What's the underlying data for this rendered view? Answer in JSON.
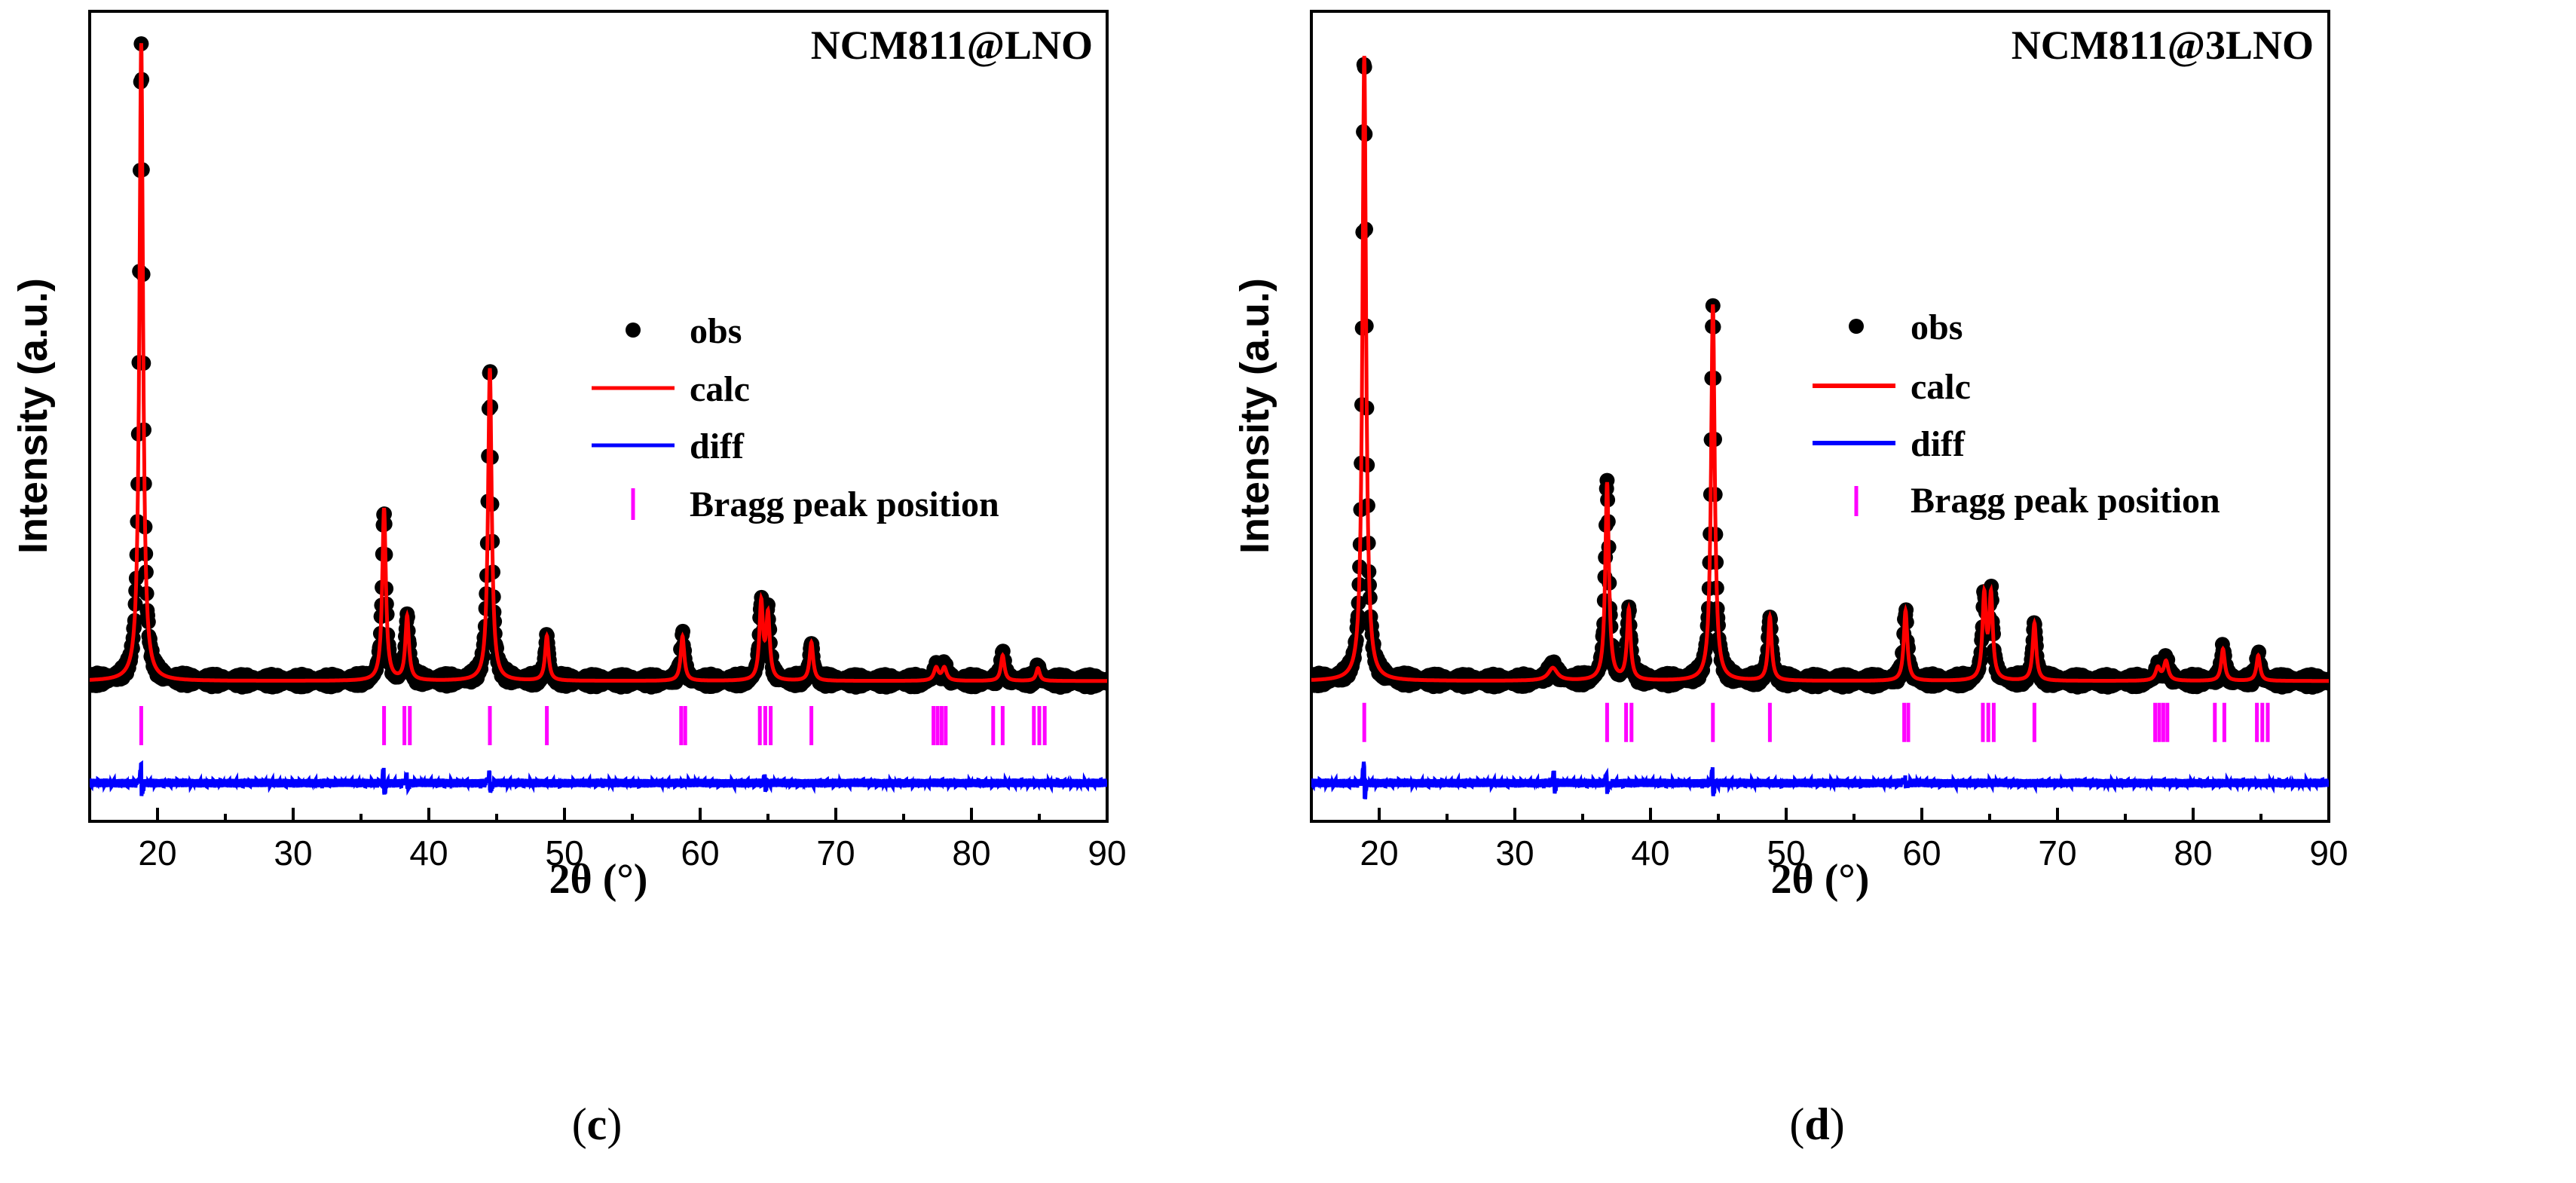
{
  "colors": {
    "obs": "#000000",
    "calc": "#ff0000",
    "diff": "#0000ff",
    "bragg": "#ff00ff",
    "axis": "#000000"
  },
  "chart_data": [
    {
      "type": "line",
      "panel_label": "c",
      "title": "NCM811@LNO",
      "xlabel": "2θ (°)",
      "ylabel": "Intensity (a.u.)",
      "xlim": [
        15,
        90
      ],
      "ylim": [
        -0.22,
        1.05
      ],
      "xticks": [
        20,
        30,
        40,
        50,
        60,
        70,
        80,
        90
      ],
      "yticks": [],
      "legend": {
        "position": "center-right",
        "entries": [
          "obs",
          "calc",
          "diff",
          "Bragg peak position"
        ]
      },
      "background": 0.0,
      "diff_offset": -0.16,
      "bragg_row": -0.07,
      "peaks": [
        {
          "x": 18.8,
          "intensity": 1.0,
          "width": 0.16
        },
        {
          "x": 36.7,
          "intensity": 0.27,
          "width": 0.16
        },
        {
          "x": 38.4,
          "intensity": 0.1,
          "width": 0.16
        },
        {
          "x": 44.5,
          "intensity": 0.49,
          "width": 0.16
        },
        {
          "x": 48.7,
          "intensity": 0.07,
          "width": 0.16
        },
        {
          "x": 58.7,
          "intensity": 0.07,
          "width": 0.16
        },
        {
          "x": 64.5,
          "intensity": 0.12,
          "width": 0.16
        },
        {
          "x": 65.0,
          "intensity": 0.1,
          "width": 0.16
        },
        {
          "x": 68.2,
          "intensity": 0.06,
          "width": 0.16
        },
        {
          "x": 77.4,
          "intensity": 0.02,
          "width": 0.2
        },
        {
          "x": 78.0,
          "intensity": 0.02,
          "width": 0.2
        },
        {
          "x": 82.3,
          "intensity": 0.04,
          "width": 0.16
        },
        {
          "x": 84.9,
          "intensity": 0.02,
          "width": 0.16
        }
      ],
      "bragg_positions": [
        18.8,
        36.7,
        38.2,
        38.6,
        44.5,
        48.7,
        58.6,
        58.9,
        64.4,
        64.8,
        65.2,
        68.2,
        77.2,
        77.5,
        77.8,
        78.1,
        81.6,
        82.3,
        84.6,
        85.0,
        85.4
      ],
      "diff_spikes": [
        {
          "x": 18.8,
          "amp": 0.025
        },
        {
          "x": 36.7,
          "amp": 0.018
        },
        {
          "x": 38.4,
          "amp": 0.01
        },
        {
          "x": 44.5,
          "amp": 0.02
        },
        {
          "x": 64.8,
          "amp": 0.01
        }
      ]
    },
    {
      "type": "line",
      "panel_label": "d",
      "title": "NCM811@3LNO",
      "xlabel": "2θ (°)",
      "ylabel": "Intensity (a.u.)",
      "xlim": [
        15,
        90
      ],
      "ylim": [
        -0.22,
        1.05
      ],
      "xticks": [
        20,
        30,
        40,
        50,
        60,
        70,
        80,
        90
      ],
      "yticks": [],
      "legend": {
        "position": "center-right",
        "entries": [
          "obs",
          "calc",
          "diff",
          "Bragg peak position"
        ]
      },
      "background": 0.0,
      "diff_offset": -0.16,
      "bragg_row": -0.065,
      "peaks": [
        {
          "x": 18.9,
          "intensity": 0.98,
          "width": 0.16
        },
        {
          "x": 32.8,
          "intensity": 0.02,
          "width": 0.4
        },
        {
          "x": 36.8,
          "intensity": 0.31,
          "width": 0.16
        },
        {
          "x": 38.4,
          "intensity": 0.11,
          "width": 0.16
        },
        {
          "x": 44.6,
          "intensity": 0.59,
          "width": 0.16
        },
        {
          "x": 48.8,
          "intensity": 0.1,
          "width": 0.16
        },
        {
          "x": 58.8,
          "intensity": 0.11,
          "width": 0.16
        },
        {
          "x": 64.6,
          "intensity": 0.13,
          "width": 0.16
        },
        {
          "x": 65.1,
          "intensity": 0.13,
          "width": 0.16
        },
        {
          "x": 68.3,
          "intensity": 0.09,
          "width": 0.16
        },
        {
          "x": 77.4,
          "intensity": 0.02,
          "width": 0.2
        },
        {
          "x": 78.0,
          "intensity": 0.03,
          "width": 0.2
        },
        {
          "x": 82.2,
          "intensity": 0.05,
          "width": 0.16
        },
        {
          "x": 84.8,
          "intensity": 0.04,
          "width": 0.16
        }
      ],
      "bragg_positions": [
        18.9,
        36.8,
        38.2,
        38.6,
        44.6,
        48.8,
        58.7,
        59.0,
        64.5,
        64.9,
        65.3,
        68.3,
        77.2,
        77.5,
        77.8,
        78.1,
        81.6,
        82.3,
        84.7,
        85.1,
        85.5
      ],
      "diff_spikes": [
        {
          "x": 18.9,
          "amp": 0.03
        },
        {
          "x": 32.9,
          "amp": 0.015
        },
        {
          "x": 36.8,
          "amp": 0.015
        },
        {
          "x": 44.6,
          "amp": 0.02
        },
        {
          "x": 58.8,
          "amp": 0.008
        }
      ]
    }
  ]
}
